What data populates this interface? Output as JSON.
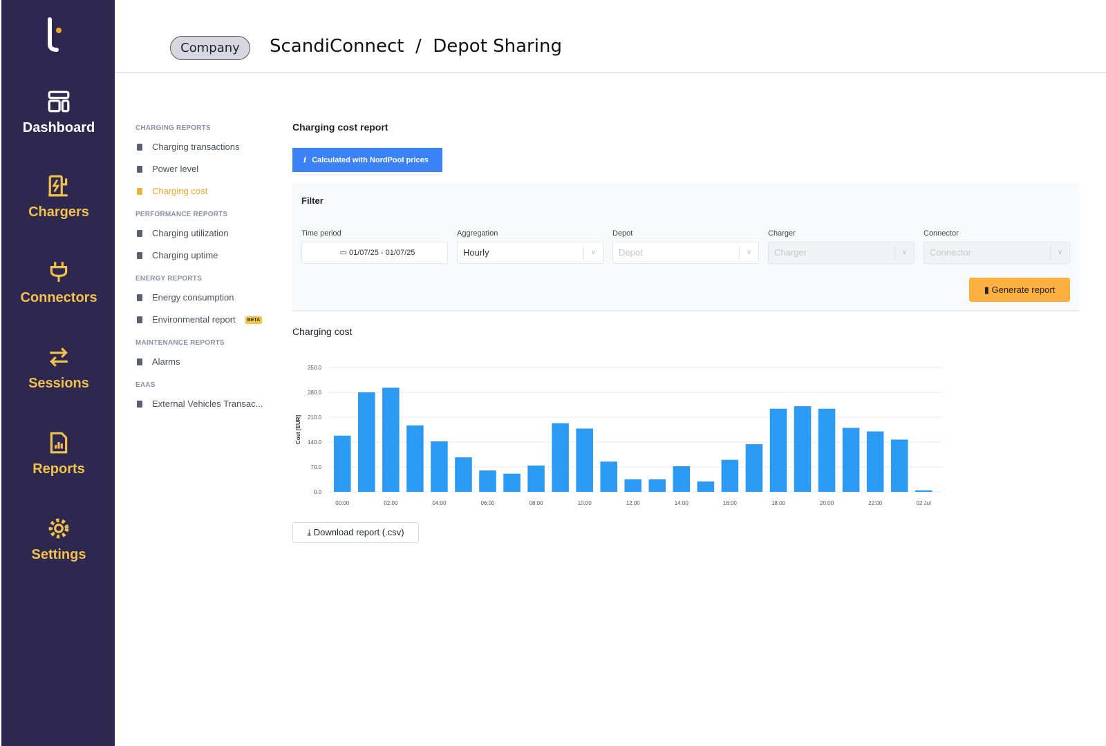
{
  "nav": {
    "items": [
      {
        "label": "Dashboard",
        "icon": "dashboard-icon",
        "active": true
      },
      {
        "label": "Chargers",
        "icon": "charger-icon"
      },
      {
        "label": "Connectors",
        "icon": "plug-icon"
      },
      {
        "label": "Sessions",
        "icon": "arrows-swap-icon"
      },
      {
        "label": "Reports",
        "icon": "report-icon"
      },
      {
        "label": "Settings",
        "icon": "gear-icon"
      }
    ]
  },
  "header": {
    "company": "Company",
    "breadcrumb": "ScandiConnect  /  Depot Sharing"
  },
  "menu": {
    "sections": [
      {
        "title": "CHARGING REPORTS",
        "items": [
          "Charging transactions",
          "Power level",
          "Charging cost"
        ]
      },
      {
        "title": "PERFORMANCE REPORTS",
        "items": [
          "Charging utilization",
          "Charging uptime"
        ]
      },
      {
        "title": "ENERGY REPORTS",
        "items": [
          "Energy consumption",
          "Environmental report"
        ]
      },
      {
        "title": "MAINTENANCE REPORTS",
        "items": [
          "Alarms"
        ]
      },
      {
        "title": "EAAS",
        "items": [
          "External Vehicles Transac..."
        ]
      }
    ],
    "active": "Charging cost",
    "beta_label": "BETA"
  },
  "main": {
    "title": "Charging cost report",
    "info": "Calculated with NordPool prices",
    "filter": {
      "title": "Filter",
      "time_label": "Time period",
      "time_value": "01/07/25 - 01/07/25",
      "agg_label": "Aggregation",
      "agg_value": "Hourly",
      "depot_label": "Depot",
      "depot_placeholder": "Depot",
      "charger_label": "Charger",
      "charger_placeholder": "Charger",
      "connector_label": "Connector",
      "connector_placeholder": "Connector",
      "generate": "Generate report"
    },
    "chart_title": "Charging cost",
    "download": "Download report (.csv)"
  },
  "colors": {
    "sidebar": "#2e2850",
    "accent": "#f0c24a",
    "bar": "#2b9af3",
    "info": "#3b82f6",
    "generate": "#fbb040"
  },
  "chart_data": {
    "type": "bar",
    "ylabel": "Cost [EUR]",
    "ylim": [
      0,
      350
    ],
    "yticks": [
      "0.0",
      "70.0",
      "140.0",
      "210.0",
      "280.0",
      "350.0"
    ],
    "categories": [
      "00:00",
      "01:00",
      "02:00",
      "03:00",
      "04:00",
      "05:00",
      "06:00",
      "07:00",
      "08:00",
      "09:00",
      "10:00",
      "11:00",
      "12:00",
      "13:00",
      "14:00",
      "15:00",
      "16:00",
      "17:00",
      "18:00",
      "19:00",
      "20:00",
      "21:00",
      "22:00",
      "23:00",
      "02 Jul"
    ],
    "xticklabels": [
      "00:00",
      "02:00",
      "04:00",
      "06:00",
      "08:00",
      "10:00",
      "12:00",
      "14:00",
      "16:00",
      "18:00",
      "20:00",
      "22:00",
      "02 Jul"
    ],
    "values": [
      158,
      280,
      293,
      187,
      142,
      97,
      60,
      51,
      74,
      193,
      178,
      85,
      35,
      35,
      72,
      29,
      90,
      134,
      234,
      241,
      234,
      180,
      170,
      147,
      4
    ],
    "grid": true
  }
}
